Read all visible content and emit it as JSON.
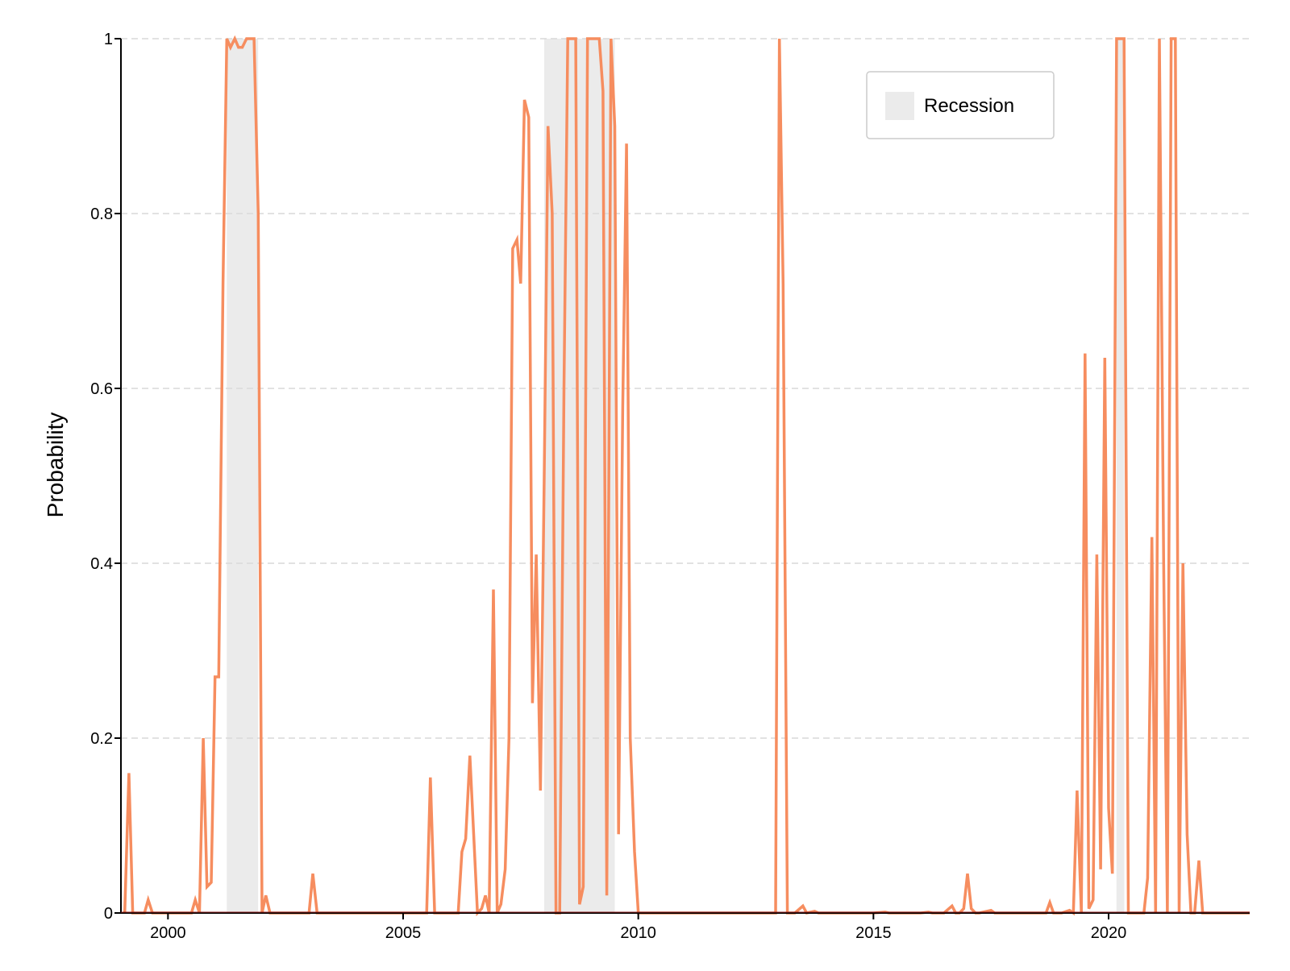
{
  "chart_data": {
    "type": "line",
    "title": "",
    "xlabel": "",
    "ylabel": "Probability",
    "xlim": [
      1999.0,
      2023.0
    ],
    "ylim": [
      0,
      1
    ],
    "x_ticks": [
      2000,
      2005,
      2010,
      2015,
      2020
    ],
    "y_ticks": [
      {
        "value": 0,
        "label": "0"
      },
      {
        "value": 0.2,
        "label": "0.2"
      },
      {
        "value": 0.4,
        "label": "0.4"
      },
      {
        "value": 0.6,
        "label": "0.6"
      },
      {
        "value": 0.8,
        "label": "0.8"
      },
      {
        "value": 1,
        "label": "1"
      }
    ],
    "grid": "horizontal dashed",
    "legend": {
      "placement": "top-right",
      "entries": [
        {
          "label": "Recession",
          "kind": "shaded-band"
        }
      ]
    },
    "colors": {
      "line": "#f68d5f",
      "recession": "#ebebeb",
      "grid": "#d9d9d9",
      "axis": "#000000",
      "baseline": "#8b1a1a"
    },
    "recessions": [
      {
        "start": 2001.25,
        "end": 2001.917
      },
      {
        "start": 2008.0,
        "end": 2009.5
      },
      {
        "start": 2020.167,
        "end": 2020.333
      }
    ],
    "series": [
      {
        "values": [
          [
            1999.08,
            0.0
          ],
          [
            1999.17,
            0.16
          ],
          [
            1999.25,
            0.0
          ],
          [
            1999.33,
            0.0
          ],
          [
            1999.42,
            0.0
          ],
          [
            1999.5,
            0.0
          ],
          [
            1999.58,
            0.015
          ],
          [
            1999.67,
            0.0
          ],
          [
            1999.75,
            0.0
          ],
          [
            1999.83,
            0.0
          ],
          [
            1999.92,
            0.0
          ],
          [
            2000.0,
            0.0
          ],
          [
            2000.25,
            0.0
          ],
          [
            2000.5,
            0.0
          ],
          [
            2000.58,
            0.015
          ],
          [
            2000.67,
            0.0
          ],
          [
            2000.75,
            0.2
          ],
          [
            2000.83,
            0.03
          ],
          [
            2000.92,
            0.035
          ],
          [
            2001.0,
            0.27
          ],
          [
            2001.08,
            0.27
          ],
          [
            2001.17,
            0.72
          ],
          [
            2001.25,
            1.0
          ],
          [
            2001.33,
            0.99
          ],
          [
            2001.42,
            1.0
          ],
          [
            2001.5,
            0.99
          ],
          [
            2001.58,
            0.99
          ],
          [
            2001.67,
            1.0
          ],
          [
            2001.75,
            1.0
          ],
          [
            2001.83,
            1.0
          ],
          [
            2001.92,
            0.8
          ],
          [
            2002.0,
            0.0
          ],
          [
            2002.08,
            0.02
          ],
          [
            2002.17,
            0.0
          ],
          [
            2002.5,
            0.0
          ],
          [
            2003.0,
            0.0
          ],
          [
            2003.08,
            0.045
          ],
          [
            2003.17,
            0.0
          ],
          [
            2004.0,
            0.0
          ],
          [
            2005.0,
            0.0
          ],
          [
            2005.5,
            0.0
          ],
          [
            2005.58,
            0.155
          ],
          [
            2005.67,
            0.0
          ],
          [
            2006.0,
            0.0
          ],
          [
            2006.17,
            0.0
          ],
          [
            2006.25,
            0.07
          ],
          [
            2006.33,
            0.085
          ],
          [
            2006.42,
            0.18
          ],
          [
            2006.5,
            0.09
          ],
          [
            2006.58,
            0.0
          ],
          [
            2006.67,
            0.005
          ],
          [
            2006.75,
            0.02
          ],
          [
            2006.83,
            0.0
          ],
          [
            2006.92,
            0.37
          ],
          [
            2007.0,
            0.0
          ],
          [
            2007.08,
            0.01
          ],
          [
            2007.17,
            0.05
          ],
          [
            2007.25,
            0.2
          ],
          [
            2007.33,
            0.76
          ],
          [
            2007.42,
            0.77
          ],
          [
            2007.5,
            0.72
          ],
          [
            2007.58,
            0.93
          ],
          [
            2007.67,
            0.91
          ],
          [
            2007.75,
            0.24
          ],
          [
            2007.83,
            0.41
          ],
          [
            2007.92,
            0.14
          ],
          [
            2008.0,
            0.5
          ],
          [
            2008.08,
            0.9
          ],
          [
            2008.17,
            0.8
          ],
          [
            2008.25,
            0.0
          ],
          [
            2008.33,
            0.0
          ],
          [
            2008.42,
            0.6
          ],
          [
            2008.5,
            1.0
          ],
          [
            2008.58,
            1.0
          ],
          [
            2008.67,
            1.0
          ],
          [
            2008.75,
            0.01
          ],
          [
            2008.83,
            0.03
          ],
          [
            2008.92,
            1.0
          ],
          [
            2009.0,
            1.0
          ],
          [
            2009.08,
            1.0
          ],
          [
            2009.17,
            1.0
          ],
          [
            2009.25,
            0.94
          ],
          [
            2009.33,
            0.02
          ],
          [
            2009.42,
            1.0
          ],
          [
            2009.5,
            0.9
          ],
          [
            2009.58,
            0.09
          ],
          [
            2009.67,
            0.58
          ],
          [
            2009.75,
            0.88
          ],
          [
            2009.83,
            0.2
          ],
          [
            2009.92,
            0.07
          ],
          [
            2010.0,
            0.0
          ],
          [
            2011.0,
            0.0
          ],
          [
            2012.0,
            0.0
          ],
          [
            2012.92,
            0.0
          ],
          [
            2013.0,
            1.0
          ],
          [
            2013.08,
            0.72
          ],
          [
            2013.17,
            0.0
          ],
          [
            2013.33,
            0.0
          ],
          [
            2013.5,
            0.008
          ],
          [
            2013.58,
            0.0
          ],
          [
            2013.75,
            0.002
          ],
          [
            2013.83,
            0.0
          ],
          [
            2014.0,
            0.0
          ],
          [
            2015.0,
            0.0
          ],
          [
            2015.25,
            0.001
          ],
          [
            2015.33,
            0.0
          ],
          [
            2016.0,
            0.0
          ],
          [
            2016.17,
            0.001
          ],
          [
            2016.25,
            0.0
          ],
          [
            2016.5,
            0.0
          ],
          [
            2016.67,
            0.008
          ],
          [
            2016.75,
            0.0
          ],
          [
            2016.83,
            0.0
          ],
          [
            2016.92,
            0.005
          ],
          [
            2017.0,
            0.045
          ],
          [
            2017.08,
            0.005
          ],
          [
            2017.17,
            0.0
          ],
          [
            2017.25,
            0.0
          ],
          [
            2017.5,
            0.003
          ],
          [
            2017.58,
            0.0
          ],
          [
            2018.0,
            0.0
          ],
          [
            2018.67,
            0.0
          ],
          [
            2018.75,
            0.012
          ],
          [
            2018.83,
            0.0
          ],
          [
            2019.0,
            0.0
          ],
          [
            2019.17,
            0.003
          ],
          [
            2019.25,
            0.0
          ],
          [
            2019.33,
            0.14
          ],
          [
            2019.42,
            0.0
          ],
          [
            2019.5,
            0.64
          ],
          [
            2019.58,
            0.005
          ],
          [
            2019.67,
            0.015
          ],
          [
            2019.75,
            0.41
          ],
          [
            2019.83,
            0.05
          ],
          [
            2019.92,
            0.635
          ],
          [
            2020.0,
            0.12
          ],
          [
            2020.08,
            0.045
          ],
          [
            2020.17,
            1.0
          ],
          [
            2020.25,
            1.0
          ],
          [
            2020.33,
            1.0
          ],
          [
            2020.42,
            0.0
          ],
          [
            2020.75,
            0.0
          ],
          [
            2020.83,
            0.04
          ],
          [
            2020.92,
            0.43
          ],
          [
            2021.0,
            0.0
          ],
          [
            2021.08,
            1.0
          ],
          [
            2021.17,
            0.4
          ],
          [
            2021.25,
            0.0
          ],
          [
            2021.33,
            1.0
          ],
          [
            2021.42,
            1.0
          ],
          [
            2021.5,
            0.0
          ],
          [
            2021.58,
            0.4
          ],
          [
            2021.67,
            0.09
          ],
          [
            2021.75,
            0.0
          ],
          [
            2021.83,
            0.0
          ],
          [
            2021.92,
            0.06
          ],
          [
            2022.0,
            0.0
          ],
          [
            2023.0,
            0.0
          ]
        ]
      }
    ]
  }
}
